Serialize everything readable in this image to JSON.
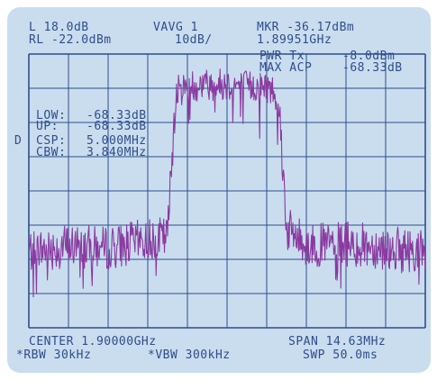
{
  "header": {
    "ref_level_offset": "L 18.0dB",
    "averaging": "VAVG 1",
    "marker_readout": "MKR -36.17dBm",
    "ref_level": "RL -22.0dBm",
    "scale": "10dB/",
    "marker_frequency": "1.89951GHz"
  },
  "power_panel": {
    "pwr_label": "PWR Tx",
    "pwr_value": "-8.0dBm",
    "acp_label": "MAX ACP",
    "acp_value": "-68.33dB"
  },
  "acp_panel": {
    "low_label": "LOW:",
    "low_value": "-68.33dB",
    "up_label": "UP:",
    "up_value": "-68.33dB",
    "csp_label": "CSP:",
    "csp_value": "5.000MHz",
    "cbw_label": "CBW:",
    "cbw_value": "3.840MHz"
  },
  "display_mode": "D",
  "footer": {
    "center": "CENTER 1.90000GHz",
    "span": "SPAN 14.63MHz",
    "rbw": "*RBW 30kHz",
    "vbw": "*VBW 300kHz",
    "sweep": "SWP 50.0ms"
  },
  "colors": {
    "screen": "#c9ddee",
    "grid": "#2f4d8c",
    "trace": "#8a3aa0"
  },
  "chart_data": {
    "type": "line",
    "x": [
      -7.3,
      -6.0,
      -4.5,
      -3.0,
      -2.2,
      -1.9,
      -1.5,
      -1.0,
      0.0,
      1.0,
      1.5,
      1.9,
      2.2,
      3.0,
      4.5,
      6.0,
      7.3
    ],
    "values": [
      -94,
      -92,
      -93,
      -90,
      -89,
      -36,
      -34,
      -33,
      -33,
      -34,
      -34,
      -37,
      -86,
      -92,
      -91,
      -93,
      -94
    ],
    "xlim": [
      -7.315,
      7.315
    ],
    "ylim": [
      -122,
      -22
    ],
    "grid": true
  }
}
